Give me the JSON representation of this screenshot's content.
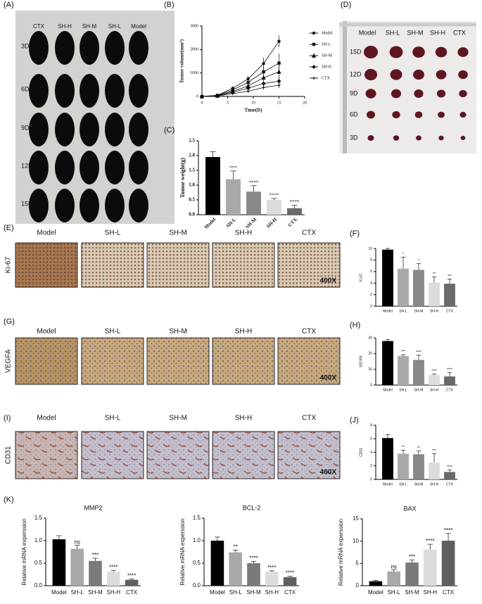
{
  "panel_labels": [
    "(A)",
    "(B)",
    "(C)",
    "(D)",
    "(E)",
    "(F)",
    "(G)",
    "(H)",
    "(I)",
    "(J)",
    "(K)"
  ],
  "photo_a": {
    "columns": [
      "CTX",
      "SH-H",
      "SH-M",
      "SH-L",
      "Model"
    ],
    "rows": [
      "3D",
      "6D",
      "9D",
      "12D",
      "15D"
    ]
  },
  "photo_d": {
    "columns": [
      "Model",
      "SH-L",
      "SH-M",
      "SH-H",
      "CTX"
    ],
    "rows": [
      "15D",
      "12D",
      "9D",
      "6D",
      "3D"
    ]
  },
  "histology": {
    "columns": [
      "Model",
      "SH-L",
      "SH-M",
      "SH-H",
      "CTX"
    ],
    "rows": [
      "Ki-67",
      "VEGFA",
      "CD31"
    ],
    "magnification": "400X"
  },
  "chart_data": [
    {
      "type": "line",
      "xlabel": "Time(D)",
      "ylabel": "Tumor volume(mm³)",
      "x": [
        0,
        3,
        6,
        9,
        12,
        15
      ],
      "xlim": [
        0,
        20
      ],
      "xticks": [
        0,
        5,
        10,
        15,
        20
      ],
      "ylim": [
        0,
        3000
      ],
      "yticks": [
        0,
        1000,
        2000,
        3000
      ],
      "series": [
        {
          "name": "Model",
          "color": "#111111",
          "values": [
            0,
            50,
            350,
            750,
            1400,
            2350
          ],
          "errors": [
            0,
            10,
            40,
            120,
            250,
            250
          ]
        },
        {
          "name": "SH-L",
          "color": "#111111",
          "values": [
            0,
            40,
            280,
            600,
            1050,
            1420
          ],
          "errors": [
            0,
            10,
            40,
            100,
            220,
            400
          ]
        },
        {
          "name": "SH-M",
          "color": "#111111",
          "values": [
            0,
            30,
            220,
            450,
            800,
            1050
          ],
          "errors": [
            0,
            10,
            30,
            80,
            150,
            300
          ]
        },
        {
          "name": "SH-H",
          "color": "#111111",
          "values": [
            0,
            25,
            180,
            350,
            550,
            650
          ],
          "errors": [
            0,
            8,
            30,
            60,
            120,
            150
          ]
        },
        {
          "name": "CTX",
          "color": "#111111",
          "values": [
            0,
            20,
            120,
            220,
            380,
            480
          ],
          "errors": [
            0,
            5,
            20,
            40,
            80,
            120
          ]
        }
      ]
    },
    {
      "type": "bar",
      "ylabel": "Tumor weight(g)",
      "categories": [
        "Model",
        "SH-L",
        "SH-M",
        "SH-H",
        "CTX"
      ],
      "values": [
        1.95,
        1.2,
        0.78,
        0.5,
        0.22
      ],
      "errors": [
        0.18,
        0.28,
        0.2,
        0.05,
        0.1
      ],
      "annotations": [
        null,
        "***",
        "****",
        "****",
        "****"
      ],
      "colors": [
        "#000000",
        "#a9a9a9",
        "#888888",
        "#dcdcdc",
        "#6a6a6a"
      ],
      "ylim": [
        0,
        2.5
      ],
      "yticks": [
        {
          "value": 0,
          "label": "0.0"
        },
        0.5,
        {
          "value": 1,
          "label": "1.0"
        },
        1.5,
        {
          "value": 2,
          "label": "2.0"
        },
        2.5
      ]
    },
    {
      "type": "bar",
      "ylabel": "Ki-67",
      "categories": [
        "Model",
        "SH-L",
        "SH-M",
        "SH-H",
        "CTX"
      ],
      "values": [
        9.8,
        6.5,
        6.3,
        4.1,
        3.9
      ],
      "errors": [
        0.2,
        2,
        1.1,
        1,
        0.8
      ],
      "annotations": [
        null,
        "*",
        "*",
        "**",
        "***"
      ],
      "colors": [
        "#000000",
        "#a9a9a9",
        "#888888",
        "#dcdcdc",
        "#6a6a6a"
      ],
      "ylim": [
        0,
        10
      ],
      "yticks": [
        0,
        2,
        4,
        6,
        8,
        10
      ]
    },
    {
      "type": "bar",
      "ylabel": "VEGFA",
      "categories": [
        "Model",
        "SH-L",
        "SH-M",
        "SH-H",
        "CTX"
      ],
      "values": [
        28,
        18.5,
        16,
        6.5,
        5.5
      ],
      "errors": [
        1,
        0.8,
        3,
        0.6,
        2.5
      ],
      "annotations": [
        null,
        "***",
        "****",
        "****",
        "****"
      ],
      "colors": [
        "#000000",
        "#a9a9a9",
        "#888888",
        "#dcdcdc",
        "#6a6a6a"
      ],
      "ylim": [
        0,
        30
      ],
      "yticks": [
        0,
        10,
        20,
        30
      ]
    },
    {
      "type": "bar",
      "ylabel": "CD31",
      "categories": [
        "Model",
        "SH-L",
        "SH-M",
        "SH-H",
        "CTX"
      ],
      "values": [
        6.1,
        3.8,
        3.7,
        2.5,
        1.1
      ],
      "errors": [
        0.5,
        0.5,
        0.5,
        1.3,
        0.3
      ],
      "annotations": [
        null,
        "**",
        "**",
        "***",
        "****"
      ],
      "colors": [
        "#000000",
        "#a9a9a9",
        "#888888",
        "#dcdcdc",
        "#6a6a6a"
      ],
      "ylim": [
        0,
        8
      ],
      "yticks": [
        0,
        2,
        4,
        6,
        8
      ]
    },
    {
      "type": "bar",
      "title": "MMP2",
      "ylabel": "Relative mRNA experssion",
      "categories": [
        "Model",
        "SH-L",
        "SH-M",
        "SH-H",
        "CTX"
      ],
      "values": [
        1.03,
        0.82,
        0.55,
        0.31,
        0.13
      ],
      "errors": [
        0.08,
        0.08,
        0.06,
        0.03,
        0.02
      ],
      "annotations": [
        null,
        "ns",
        "***",
        "****",
        "****"
      ],
      "colors": [
        "#000000",
        "#a9a9a9",
        "#7a7a7a",
        "#dcdcdc",
        "#5f5f5f"
      ],
      "ylim": [
        0,
        1.5
      ],
      "yticks": [
        {
          "value": 0,
          "label": "0.0"
        },
        0.5,
        {
          "value": 1,
          "label": "1.0"
        },
        1.5
      ]
    },
    {
      "type": "bar",
      "title": "BCL-2",
      "ylabel": "Relative mRNA experssion",
      "categories": [
        "Model",
        "SH-L",
        "SH-M",
        "SH-H",
        "CTX"
      ],
      "values": [
        1.0,
        0.74,
        0.5,
        0.31,
        0.19
      ],
      "errors": [
        0.08,
        0.05,
        0.04,
        0.02,
        0.02
      ],
      "annotations": [
        null,
        "**",
        "****",
        "****",
        "****"
      ],
      "colors": [
        "#000000",
        "#a9a9a9",
        "#7a7a7a",
        "#dcdcdc",
        "#5f5f5f"
      ],
      "ylim": [
        0,
        1.5
      ],
      "yticks": [
        {
          "value": 0,
          "label": "0.0"
        },
        0.5,
        {
          "value": 1,
          "label": "1.0"
        },
        1.5
      ]
    },
    {
      "type": "bar",
      "title": "BAX",
      "ylabel": "Relative mRNA experssion",
      "categories": [
        "Model",
        "SH-L",
        "SH-M",
        "SH-H",
        "CTX"
      ],
      "values": [
        1,
        3.2,
        5.2,
        8.1,
        10.1
      ],
      "errors": [
        0.2,
        0.4,
        0.6,
        1.2,
        1.6
      ],
      "annotations": [
        null,
        "ns",
        "***",
        "****",
        "****"
      ],
      "colors": [
        "#000000",
        "#a9a9a9",
        "#7a7a7a",
        "#dcdcdc",
        "#5f5f5f"
      ],
      "ylim": [
        0,
        15
      ],
      "yticks": [
        0,
        5,
        10,
        15
      ]
    }
  ]
}
